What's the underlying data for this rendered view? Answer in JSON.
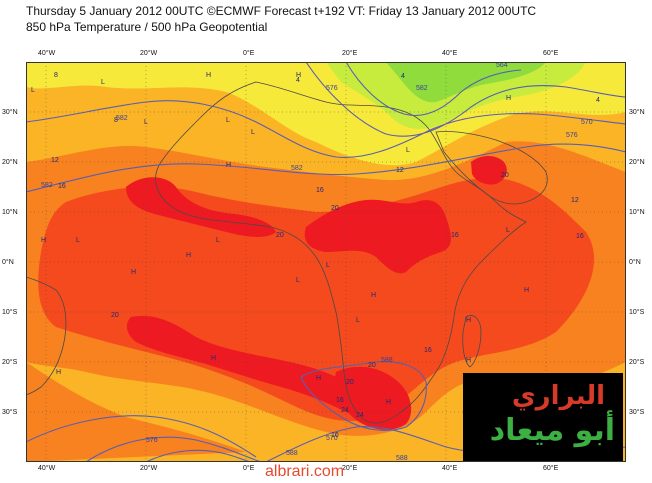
{
  "header": {
    "line1": "Thursday 5 January 2012 00UTC ©ECMWF Forecast t+192 VT: Friday 13 January 2012 00UTC",
    "line2": "850 hPa Temperature / 500 hPa Geopotential"
  },
  "axes": {
    "lon_ticks": [
      "40°W",
      "20°W",
      "0°E",
      "20°E",
      "40°E",
      "60°E"
    ],
    "lat_ticks": [
      "30°N",
      "20°N",
      "10°N",
      "0°N",
      "10°S",
      "20°S",
      "30°S"
    ]
  },
  "map_labels": {
    "temps": [
      "8",
      "4",
      "4",
      "4",
      "8",
      "12",
      "12",
      "16",
      "16",
      "20",
      "20",
      "20",
      "16",
      "12",
      "16",
      "20",
      "16",
      "20",
      "20",
      "16",
      "24",
      "24",
      "16"
    ],
    "geopotential": [
      "582",
      "582",
      "576",
      "570",
      "576",
      "582",
      "588",
      "576",
      "570",
      "588",
      "582",
      "564",
      "588"
    ],
    "pressure_marks": [
      "H",
      "L",
      "H",
      "L",
      "H",
      "L",
      "L",
      "H",
      "L",
      "L",
      "H",
      "L",
      "H",
      "L",
      "L",
      "H",
      "H",
      "L",
      "L",
      "H",
      "H",
      "H",
      "H",
      "H",
      "H",
      "L",
      "H"
    ]
  },
  "logo": {
    "line1": "البراري",
    "line2": "أبو ميعاد"
  },
  "watermark": "albrari.com",
  "colors": {
    "t_warmest": "#ee1a22",
    "t_hot": "#f54a1d",
    "t_warm": "#f7821f",
    "t_mild": "#fbb425",
    "t_cool": "#f6e93a",
    "t_cooler": "#c8ec3e",
    "t_cold": "#8fdc3c",
    "contour": "#5a5fb0",
    "coast": "#4a4a4a",
    "logo_red": "#d83a2a",
    "logo_green": "#3cb043",
    "watermark": "#e64a2e"
  }
}
